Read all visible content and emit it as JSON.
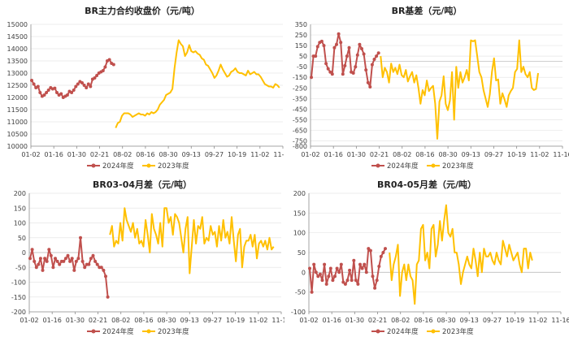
{
  "colors": {
    "series_2024": "#c0504d",
    "series_2023": "#ffc000",
    "grid": "#e6e6e6",
    "axis": "#8c8c8c",
    "text": "#404040"
  },
  "chart_data": [
    {
      "id": "p1",
      "type": "line",
      "title": "BR主力合约收盘价（元/吨）",
      "xlabel": "",
      "ylabel": "",
      "ylim": [
        10000,
        15000
      ],
      "yticks": [
        "15000",
        "14500",
        "14000",
        "13500",
        "13000",
        "12500",
        "12000",
        "11500",
        "11000",
        "10500",
        "10000"
      ],
      "xticks": [
        "01-02",
        "01-16",
        "01-30",
        "02-21",
        "08-02",
        "08-16",
        "08-30",
        "09-13",
        "09-27",
        "10-19",
        "11-02",
        "11-16"
      ],
      "legend": [
        "2024年度",
        "2023年度"
      ],
      "series": [
        {
          "name": "2024年度",
          "values": [
            12700,
            12550,
            12400,
            12450,
            12200,
            12050,
            12100,
            12200,
            12300,
            12400,
            12350,
            12380,
            12200,
            12100,
            12150,
            12000,
            12050,
            12100,
            12250,
            12200,
            12300,
            12450,
            12550,
            12650,
            12600,
            12500,
            12400,
            12550,
            12450,
            12750,
            12800,
            12900,
            13000,
            13050,
            13100,
            13250,
            13500,
            13550,
            13400,
            13350
          ]
        },
        {
          "name": "2023年度",
          "values": [
            null,
            null,
            null,
            null,
            null,
            null,
            null,
            null,
            null,
            null,
            null,
            null,
            null,
            null,
            null,
            null,
            null,
            null,
            null,
            null,
            null,
            null,
            null,
            null,
            null,
            null,
            null,
            null,
            null,
            null,
            null,
            null,
            null,
            null,
            null,
            null,
            null,
            null,
            null,
            null,
            10750,
            10950,
            11000,
            11250,
            11350,
            11350,
            11350,
            11300,
            11200,
            11250,
            11300,
            11350,
            11300,
            11300,
            11250,
            11350,
            11300,
            11400,
            11350,
            11400,
            11500,
            11700,
            11800,
            11900,
            12100,
            12150,
            12200,
            12350,
            13200,
            13850,
            14350,
            14200,
            14100,
            13700,
            13850,
            14150,
            13900,
            13850,
            13900,
            13800,
            13750,
            13600,
            13550,
            13350,
            13300,
            13150,
            13000,
            12800,
            12900,
            13100,
            13350,
            13150,
            13000,
            12850,
            12900,
            13050,
            13100,
            13200,
            13050,
            13000,
            13000,
            12950,
            12900,
            13100,
            12950,
            13000,
            13050,
            12950,
            12950,
            12850,
            12700,
            12550,
            12500,
            12450,
            12450,
            12400,
            12550,
            12500,
            12400
          ]
        }
      ]
    },
    {
      "id": "p2",
      "type": "line",
      "title": "BR基差（元/吨）",
      "xlabel": "",
      "ylabel": "",
      "ylim": [
        -800,
        350
      ],
      "yticks": [
        "350",
        "250",
        "150",
        "50",
        "-50",
        "-150",
        "-250",
        "-350",
        "-450",
        "-550",
        "-650",
        "-750",
        "-800"
      ],
      "xticks": [
        "01-02",
        "01-16",
        "01-30",
        "02-21",
        "08-02",
        "08-16",
        "08-30",
        "09-13",
        "09-27",
        "10-19",
        "11-02",
        "11-16"
      ],
      "legend": [
        "2024年度",
        "2023年度"
      ],
      "series": [
        {
          "name": "2024年度",
          "values": [
            -150,
            50,
            50,
            140,
            180,
            190,
            150,
            -20,
            -70,
            -100,
            -120,
            130,
            160,
            260,
            180,
            -120,
            -40,
            50,
            130,
            -100,
            -110,
            -50,
            60,
            160,
            120,
            70,
            -80,
            -200,
            -240,
            -30,
            20,
            50,
            80
          ]
        },
        {
          "name": "2023年度",
          "values": [
            null,
            null,
            null,
            null,
            null,
            null,
            null,
            null,
            null,
            null,
            null,
            null,
            null,
            null,
            null,
            null,
            null,
            null,
            null,
            null,
            null,
            null,
            null,
            null,
            null,
            null,
            null,
            null,
            null,
            null,
            null,
            null,
            null,
            50,
            -150,
            -60,
            -100,
            -200,
            -20,
            -100,
            -60,
            -120,
            -30,
            -130,
            -150,
            -80,
            -190,
            -140,
            -100,
            -200,
            -130,
            -250,
            -400,
            -270,
            -320,
            -180,
            -280,
            -250,
            -230,
            -400,
            -730,
            -380,
            -320,
            -140,
            -400,
            -460,
            -370,
            -100,
            -550,
            -50,
            -250,
            -100,
            -200,
            -150,
            -80,
            -180,
            200,
            190,
            200,
            50,
            -100,
            -150,
            -270,
            -350,
            -430,
            -310,
            -100,
            30,
            -180,
            -170,
            -400,
            -300,
            -360,
            -430,
            -320,
            -280,
            -250,
            -100,
            -70,
            200,
            -100,
            -50,
            -120,
            -150,
            -100,
            -250,
            -270,
            -260,
            -110
          ]
        }
      ]
    },
    {
      "id": "p3",
      "type": "line",
      "title": "BR03-04月差（元/吨）",
      "xlabel": "",
      "ylabel": "",
      "ylim": [
        -200,
        200
      ],
      "yticks": [
        "200",
        "150",
        "100",
        "50",
        "0",
        "-50",
        "-100",
        "-150",
        "-200"
      ],
      "xticks": [
        "01-02",
        "01-16",
        "01-30",
        "02-21",
        "08-02",
        "08-16",
        "08-30",
        "09-13",
        "09-27",
        "10-19",
        "11-02",
        "11-16"
      ],
      "legend": [
        "2024年度",
        "2023年度"
      ],
      "series": [
        {
          "name": "2024年度",
          "values": [
            -20,
            10,
            -30,
            -50,
            -40,
            -20,
            -60,
            -20,
            -30,
            10,
            -10,
            -50,
            -20,
            -30,
            -40,
            -30,
            -30,
            -20,
            -10,
            -30,
            -20,
            -60,
            -30,
            -20,
            50,
            -30,
            -50,
            -40,
            -40,
            -20,
            -10,
            -30,
            -40,
            -50,
            -50,
            -60,
            -80,
            -150
          ]
        },
        {
          "name": "2023年度",
          "values": [
            null,
            null,
            null,
            null,
            null,
            null,
            null,
            null,
            null,
            null,
            null,
            null,
            null,
            null,
            null,
            null,
            null,
            null,
            null,
            null,
            null,
            null,
            null,
            null,
            null,
            null,
            null,
            null,
            null,
            null,
            null,
            null,
            null,
            null,
            null,
            null,
            null,
            null,
            60,
            90,
            20,
            40,
            30,
            100,
            40,
            150,
            110,
            90,
            70,
            100,
            50,
            80,
            30,
            40,
            20,
            110,
            60,
            0,
            130,
            80,
            60,
            30,
            100,
            20,
            150,
            150,
            100,
            120,
            60,
            130,
            120,
            100,
            50,
            0,
            80,
            120,
            -70,
            20,
            110,
            30,
            90,
            80,
            120,
            30,
            50,
            40,
            90,
            60,
            70,
            20,
            90,
            40,
            110,
            50,
            70,
            30,
            120,
            40,
            -30,
            60,
            80,
            -50,
            20,
            40,
            40,
            60,
            20,
            60,
            -20,
            30,
            40,
            20,
            40,
            10,
            50,
            10,
            20
          ]
        }
      ]
    },
    {
      "id": "p4",
      "type": "line",
      "title": "BR04-05月差（元/吨）",
      "xlabel": "",
      "ylabel": "",
      "ylim": [
        -100,
        200
      ],
      "yticks": [
        "200",
        "150",
        "100",
        "50",
        "0",
        "-50",
        "-100"
      ],
      "xticks": [
        "01-02",
        "01-16",
        "01-30",
        "02-21",
        "08-02",
        "08-16",
        "08-30",
        "09-13",
        "09-27",
        "10-19",
        "11-02",
        "11-16"
      ],
      "legend": [
        "2024年度",
        "2023年度"
      ],
      "series": [
        {
          "name": "2024年度",
          "values": [
            10,
            -50,
            20,
            0,
            -10,
            -5,
            -20,
            20,
            -30,
            -10,
            10,
            -20,
            -10,
            10,
            0,
            20,
            -25,
            -30,
            -20,
            5,
            -20,
            30,
            -20,
            -30,
            20,
            10,
            20,
            0,
            60,
            55,
            -10,
            -40,
            -20,
            15,
            40,
            50,
            60
          ]
        },
        {
          "name": "2023年度",
          "values": [
            null,
            null,
            null,
            null,
            null,
            null,
            null,
            null,
            null,
            null,
            null,
            null,
            null,
            null,
            null,
            null,
            null,
            null,
            null,
            null,
            null,
            null,
            null,
            null,
            null,
            null,
            null,
            null,
            null,
            null,
            null,
            null,
            null,
            null,
            null,
            null,
            null,
            null,
            50,
            -20,
            20,
            40,
            70,
            -60,
            0,
            20,
            -20,
            20,
            -10,
            -20,
            -80,
            20,
            30,
            110,
            120,
            30,
            50,
            10,
            110,
            120,
            40,
            70,
            130,
            80,
            130,
            170,
            100,
            90,
            110,
            50,
            50,
            20,
            -30,
            0,
            20,
            40,
            20,
            10,
            60,
            30,
            -10,
            50,
            0,
            60,
            40,
            40,
            50,
            30,
            20,
            50,
            30,
            20,
            80,
            60,
            40,
            70,
            50,
            30,
            40,
            50,
            20,
            0,
            60,
            60,
            10,
            50,
            30
          ]
        }
      ]
    }
  ]
}
